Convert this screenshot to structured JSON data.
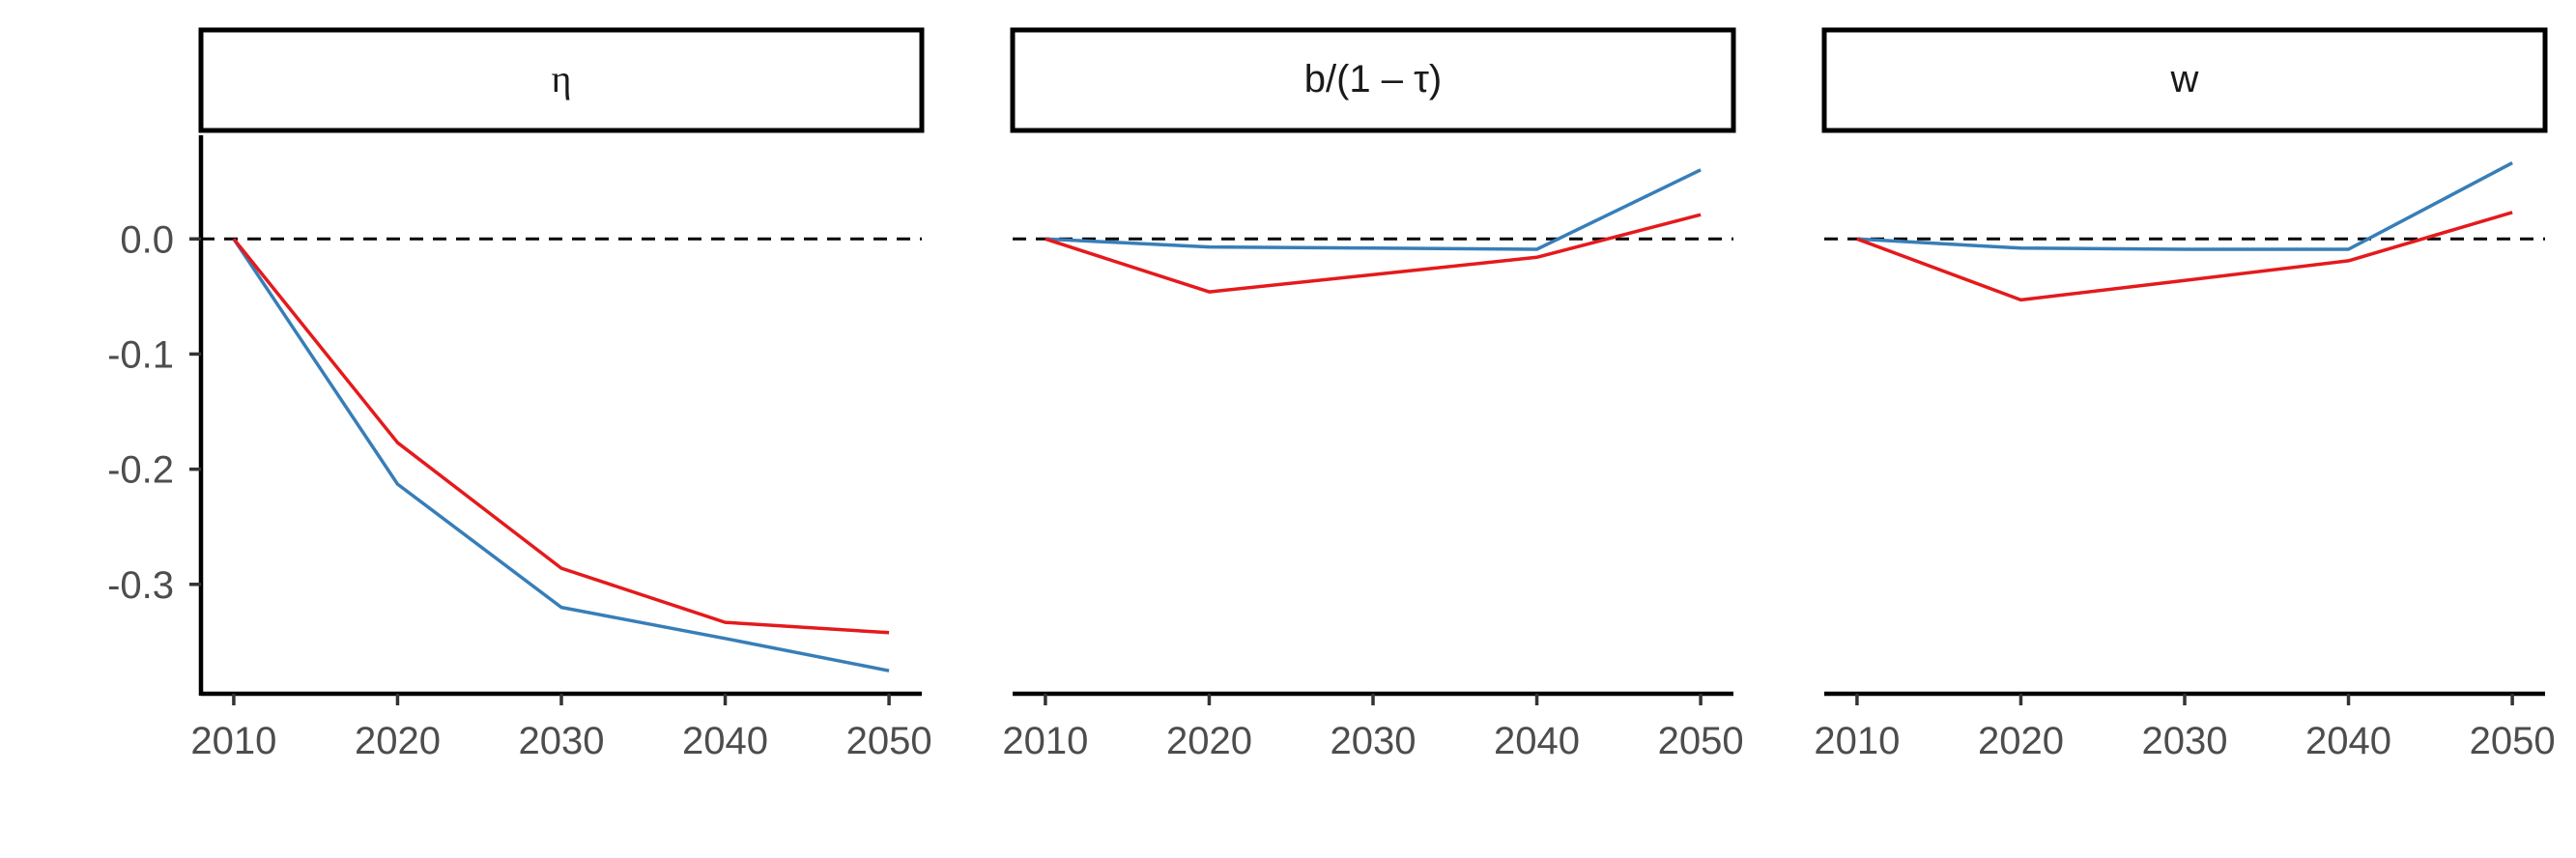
{
  "chart_data": {
    "type": "line",
    "layout": "facets",
    "x": [
      2010,
      2020,
      2030,
      2040,
      2050
    ],
    "x_ticks": [
      "2010",
      "2020",
      "2030",
      "2040",
      "2050"
    ],
    "xlim": [
      2008,
      2052
    ],
    "ylim": [
      -0.395,
      0.09
    ],
    "y_ticks": [
      "0.0",
      "-0.1",
      "-0.2",
      "-0.3"
    ],
    "y_tick_values": [
      0.0,
      -0.1,
      -0.2,
      -0.3
    ],
    "reference_line": {
      "y": 0.0,
      "style": "dashed"
    },
    "series_colors": [
      "#e41a1c",
      "#377eb8"
    ],
    "legend": "none",
    "panels": [
      {
        "strip": "η",
        "series": [
          {
            "color": "#377eb8",
            "values": [
              0.0,
              -0.213,
              -0.32,
              -0.347,
              -0.375
            ]
          },
          {
            "color": "#e41a1c",
            "values": [
              0.0,
              -0.177,
              -0.286,
              -0.333,
              -0.342
            ]
          }
        ]
      },
      {
        "strip": "b/(1 – τ)",
        "series": [
          {
            "color": "#377eb8",
            "values": [
              0.0,
              -0.007,
              -0.008,
              -0.009,
              0.06
            ]
          },
          {
            "color": "#e41a1c",
            "values": [
              0.0,
              -0.046,
              -0.031,
              -0.016,
              0.021
            ]
          }
        ]
      },
      {
        "strip": "w",
        "series": [
          {
            "color": "#377eb8",
            "values": [
              0.0,
              -0.008,
              -0.009,
              -0.009,
              0.066
            ]
          },
          {
            "color": "#e41a1c",
            "values": [
              0.0,
              -0.053,
              -0.036,
              -0.019,
              0.023
            ]
          }
        ]
      }
    ]
  }
}
